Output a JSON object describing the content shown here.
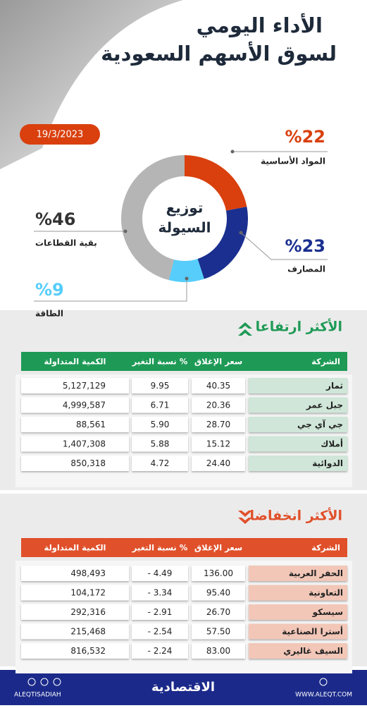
{
  "header": {
    "title": [
      "الأداء اليومي",
      "لسوق الأسهم السعودية"
    ],
    "date": "19/3/2023"
  },
  "chart_data": {
    "type": "donut",
    "title": "توزيع السيولة",
    "categories": [
      "المواد الأساسية",
      "المصارف",
      "الطاقة",
      "بقية القطاعات"
    ],
    "values": [
      22,
      23,
      9,
      46
    ],
    "value_labels": [
      "%22",
      "%23",
      "%9",
      "%46"
    ],
    "colors": [
      "#d9400e",
      "#1a2f8f",
      "#56cdfb",
      "#b5b5b5"
    ]
  },
  "gainers": {
    "title": "الأكثر ارتفاعا",
    "columns": [
      "الشركة",
      "سعر الإغلاق",
      "نسبة التغير %",
      "الكمية المتداولة"
    ],
    "rows": [
      [
        "ثمار",
        "40.35",
        "9.95",
        "5,127,129"
      ],
      [
        "جبل عمر",
        "20.36",
        "6.71",
        "4,999,587"
      ],
      [
        "جي آي جي",
        "28.70",
        "5.90",
        "88,561"
      ],
      [
        "أملاك",
        "15.12",
        "5.88",
        "1,407,308"
      ],
      [
        "الدوائية",
        "24.40",
        "4.72",
        "850,318"
      ]
    ]
  },
  "losers": {
    "title": "الأكثر انخفاضا",
    "columns": [
      "الشركة",
      "سعر الإغلاق",
      "نسبة التغير %",
      "الكمية المتداولة"
    ],
    "rows": [
      [
        "الحفر العربية",
        "136.00",
        "- 4.49",
        "498,493"
      ],
      [
        "التعاونية",
        "95.40",
        "- 3.34",
        "104,172"
      ],
      [
        "سيسكو",
        "26.70",
        "- 2.91",
        "292,316"
      ],
      [
        "أسترا الصناعية",
        "57.50",
        "- 2.54",
        "215,468"
      ],
      [
        "السيف غاليري",
        "83.00",
        "- 2.24",
        "816,532"
      ]
    ]
  },
  "footer": {
    "handle": "ALEQTISADIAH",
    "logo": "الاقتصادية",
    "site": "WWW.ALEQT.COM"
  }
}
